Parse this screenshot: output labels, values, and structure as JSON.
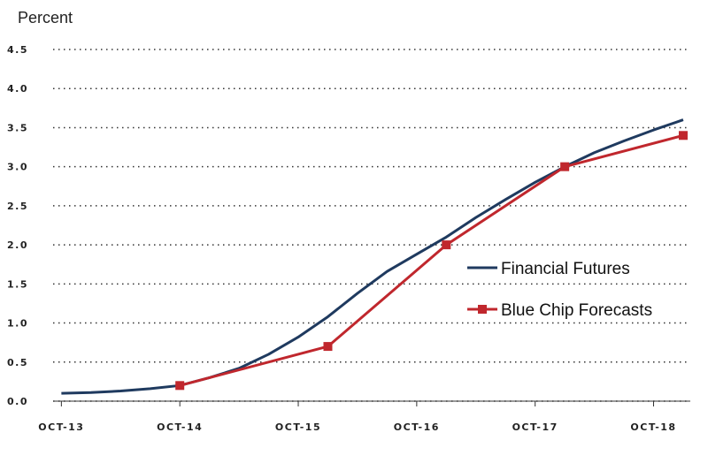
{
  "chart_data": {
    "type": "line",
    "y_axis_label": "Percent",
    "xlim": [
      2013.68,
      2019.06
    ],
    "xticks": [
      {
        "value": 2013.75,
        "label": "OCT-13"
      },
      {
        "value": 2014.75,
        "label": "OCT-14"
      },
      {
        "value": 2015.75,
        "label": "OCT-15"
      },
      {
        "value": 2016.75,
        "label": "OCT-16"
      },
      {
        "value": 2017.75,
        "label": "OCT-17"
      },
      {
        "value": 2018.75,
        "label": "OCT-18"
      }
    ],
    "ylim": [
      0,
      4.5
    ],
    "yticks": [
      {
        "value": 0,
        "label": "0.0"
      },
      0.5,
      {
        "value": 1,
        "label": "1.0"
      },
      1.5,
      {
        "value": 2,
        "label": "2.0"
      },
      2.5,
      {
        "value": 3,
        "label": "3.0"
      },
      3.5,
      {
        "value": 4,
        "label": "4.0"
      },
      4.5
    ],
    "grid": true,
    "series": [
      {
        "name": "Financial Futures",
        "color": "#1f3a5f",
        "x": [
          2013.75,
          2014.0,
          2014.25,
          2014.5,
          2014.75,
          2015.0,
          2015.25,
          2015.5,
          2015.75,
          2016.0,
          2016.25,
          2016.5,
          2016.75,
          2017.0,
          2017.25,
          2017.5,
          2017.75,
          2018.0,
          2018.25,
          2018.5,
          2018.75,
          2019.0
        ],
        "values": [
          0.1,
          0.11,
          0.13,
          0.16,
          0.2,
          0.3,
          0.42,
          0.6,
          0.82,
          1.08,
          1.38,
          1.66,
          1.88,
          2.1,
          2.35,
          2.58,
          2.8,
          3.0,
          3.18,
          3.33,
          3.47,
          3.6
        ]
      },
      {
        "name": "Blue Chip Forecasts",
        "color": "#c0272d",
        "marker": "square",
        "x": [
          2014.75,
          2016.0,
          2017.0,
          2018.0,
          2019.0
        ],
        "values": [
          0.2,
          0.7,
          2.0,
          3.0,
          3.4
        ]
      }
    ]
  }
}
